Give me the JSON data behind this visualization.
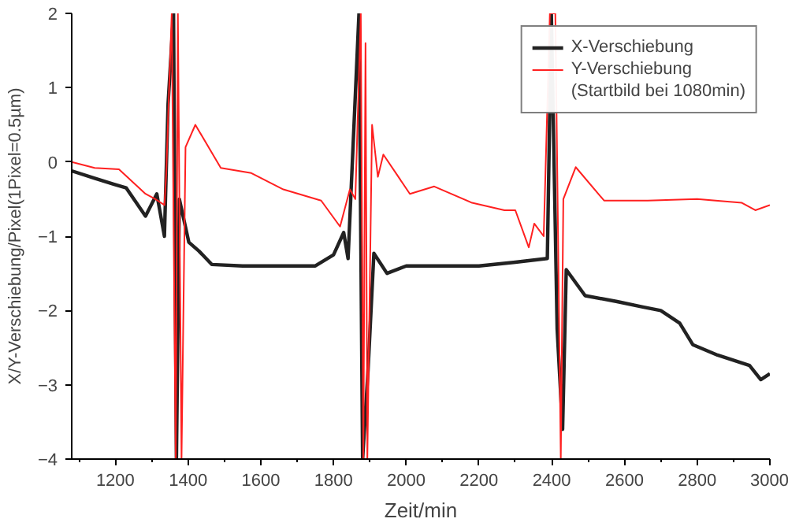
{
  "chart_data": {
    "type": "line",
    "xlabel": "Zeit/min",
    "ylabel": "X/Y-Verschiebung/Pixel(1Pixel=0.5µm)",
    "xlim": [
      1080,
      3000
    ],
    "ylim": [
      -4,
      2
    ],
    "xticks": [
      1200,
      1400,
      1600,
      1800,
      2000,
      2200,
      2400,
      2600,
      2800,
      3000
    ],
    "yticks": [
      -4,
      -3,
      -2,
      -1,
      0,
      1,
      2
    ],
    "grid": false,
    "legend": "top right",
    "line_style": "solid",
    "marker": "none",
    "annotations": [
      "(Startbild bei 1080min)"
    ],
    "series": [
      {
        "name": "X-Verschiebung",
        "color": "#222222",
        "x": [
          1080,
          1143,
          1195,
          1230,
          1283,
          1314,
          1335,
          1345,
          1360,
          1368,
          1376,
          1402,
          1430,
          1465,
          1550,
          1650,
          1750,
          1800,
          1828,
          1840,
          1870,
          1880,
          1895,
          1911,
          1947,
          2000,
          2100,
          2200,
          2300,
          2388,
          2399,
          2415,
          2430,
          2440,
          2492,
          2580,
          2648,
          2700,
          2752,
          2788,
          2856,
          2944,
          2975,
          3000
        ],
        "values": [
          -0.12,
          -0.22,
          -0.3,
          -0.35,
          -0.73,
          -0.43,
          -1.0,
          0.78,
          2,
          -4,
          -0.5,
          -1.08,
          -1.2,
          -1.38,
          -1.4,
          -1.4,
          -1.4,
          -1.25,
          -0.95,
          -1.3,
          2,
          -4,
          -2.8,
          -1.23,
          -1.5,
          -1.4,
          -1.4,
          -1.4,
          -1.35,
          -1.3,
          2,
          -2.25,
          -3.6,
          -1.45,
          -1.8,
          -1.88,
          -1.95,
          -2.0,
          -2.17,
          -2.46,
          -2.6,
          -2.74,
          -2.93,
          -2.85
        ]
      },
      {
        "name": "Y-Verschiebung",
        "color": "#ff2020",
        "x": [
          1080,
          1143,
          1210,
          1283,
          1310,
          1335,
          1340,
          1355,
          1366,
          1372,
          1382,
          1393,
          1420,
          1490,
          1574,
          1662,
          1766,
          1818,
          1845,
          1860,
          1875,
          1882,
          1888,
          1893,
          1906,
          1922,
          1937,
          2010,
          2077,
          2181,
          2270,
          2300,
          2337,
          2352,
          2378,
          2395,
          2410,
          2425,
          2432,
          2466,
          2544,
          2664,
          2800,
          2923,
          2960,
          3000
        ],
        "values": [
          0.0,
          -0.08,
          -0.1,
          -0.43,
          -0.5,
          -0.58,
          -0.15,
          2,
          -4,
          2,
          -4,
          0.2,
          0.5,
          -0.08,
          -0.15,
          -0.37,
          -0.52,
          -0.87,
          -0.37,
          -0.5,
          2,
          -4,
          1.6,
          -4,
          0.5,
          -0.2,
          0.1,
          -0.43,
          -0.33,
          -0.55,
          -0.65,
          -0.65,
          -1.15,
          -0.83,
          -1.0,
          2,
          2,
          -4,
          -0.5,
          -0.07,
          -0.52,
          -0.52,
          -0.5,
          -0.55,
          -0.65,
          -0.58
        ]
      }
    ]
  }
}
